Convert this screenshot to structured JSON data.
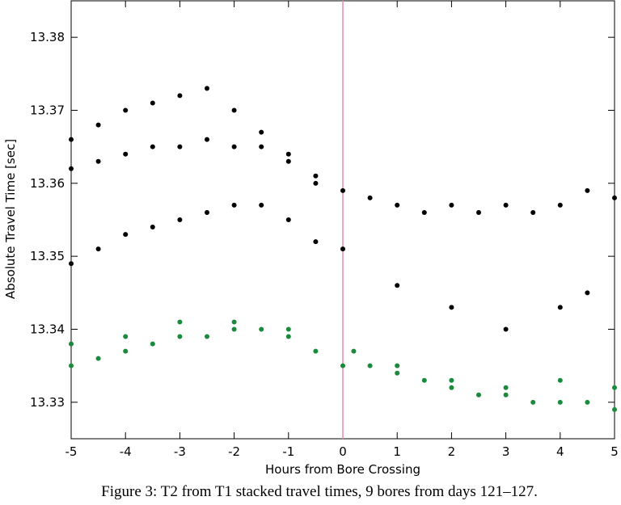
{
  "chart_data": {
    "type": "scatter",
    "xlabel": "Hours from Bore Crossing",
    "ylabel": "Absolute Travel Time [sec]",
    "caption": "Figure 3:  T2 from T1 stacked travel times, 9 bores from days 121–127.",
    "xlim": [
      -5,
      5
    ],
    "xticks": [
      -5,
      -4,
      -3,
      -2,
      -1,
      0,
      1,
      2,
      3,
      4,
      5
    ],
    "ylim": [
      13.325,
      13.385
    ],
    "yticks": [
      13.33,
      13.34,
      13.35,
      13.36,
      13.37,
      13.38
    ],
    "vline": 0,
    "vline_color": "#f08cab",
    "series": [
      {
        "color": "#000000",
        "x": [
          -5,
          -4.5,
          -4,
          -3.5,
          -3,
          -2.5,
          -2,
          -1.5,
          -1,
          -0.5,
          0,
          0.5,
          1,
          1.5,
          2,
          2.5,
          3,
          3.5,
          4,
          4.5,
          5,
          -5,
          -4.5,
          -4,
          -3.5,
          -3,
          -2.5,
          -2,
          -1.5,
          -1,
          -0.5,
          -5,
          -4.5,
          -4,
          -3.5,
          -3,
          -2.5,
          -2,
          -1.5,
          -1,
          -0.5,
          0,
          1,
          2,
          3,
          4,
          4.5
        ],
        "y": [
          13.366,
          13.368,
          13.37,
          13.371,
          13.372,
          13.373,
          13.37,
          13.367,
          13.364,
          13.361,
          13.359,
          13.358,
          13.357,
          13.356,
          13.357,
          13.356,
          13.357,
          13.356,
          13.357,
          13.359,
          13.358,
          13.362,
          13.363,
          13.364,
          13.365,
          13.365,
          13.366,
          13.365,
          13.365,
          13.363,
          13.36,
          13.349,
          13.351,
          13.353,
          13.354,
          13.355,
          13.356,
          13.357,
          13.357,
          13.355,
          13.352,
          13.351,
          13.346,
          13.343,
          13.34,
          13.343,
          13.345
        ]
      },
      {
        "color": "#1a8a3c",
        "x": [
          -5,
          -4.5,
          -4,
          -3.5,
          -3,
          -2.5,
          -2,
          -1.5,
          -1,
          -0.5,
          0,
          0.5,
          1,
          1.5,
          2,
          2.5,
          3,
          3.5,
          4,
          4.5,
          5,
          -5,
          -4,
          -3,
          -2,
          -1,
          0.2,
          1,
          2,
          3,
          4,
          5
        ],
        "y": [
          13.335,
          13.336,
          13.337,
          13.338,
          13.339,
          13.339,
          13.34,
          13.34,
          13.339,
          13.337,
          13.335,
          13.335,
          13.334,
          13.333,
          13.332,
          13.331,
          13.331,
          13.33,
          13.33,
          13.33,
          13.329,
          13.338,
          13.339,
          13.341,
          13.341,
          13.34,
          13.337,
          13.335,
          13.333,
          13.332,
          13.333,
          13.332
        ]
      }
    ]
  }
}
